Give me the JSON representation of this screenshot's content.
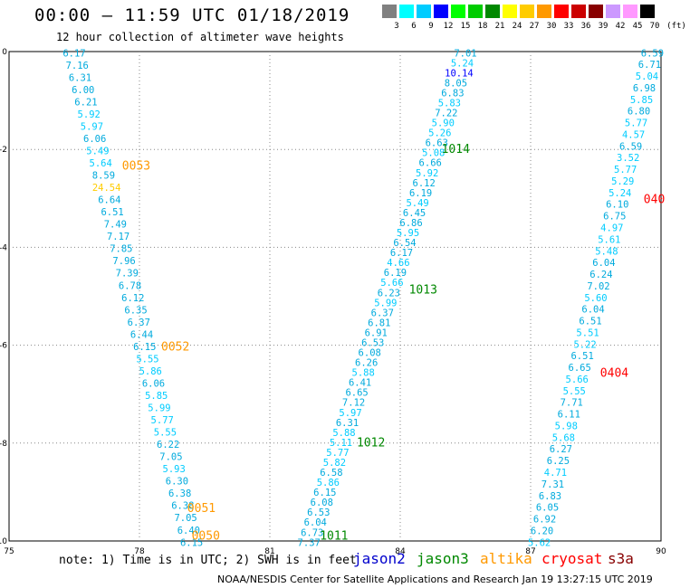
{
  "header": {
    "title": "00:00 — 11:59 UTC 01/18/2019",
    "subtitle": "12 hour collection of altimeter wave heights"
  },
  "legend": {
    "unit": "(ft)",
    "colors": [
      "#808080",
      "#00ffff",
      "#00ccff",
      "#0000ff",
      "#00ff00",
      "#00cc00",
      "#008800",
      "#ffff00",
      "#ffcc00",
      "#ff9900",
      "#ff0000",
      "#cc0000",
      "#880000",
      "#cc99ff",
      "#ff99ff",
      "#000000"
    ],
    "labels": [
      "3",
      "6",
      "9",
      "12",
      "15",
      "18",
      "21",
      "24",
      "27",
      "30",
      "33",
      "36",
      "39",
      "42",
      "45",
      "70"
    ]
  },
  "axes": {
    "x_labels": [
      "75",
      "78",
      "81",
      "84",
      "87",
      "90"
    ],
    "y_labels": [
      "0",
      "-2",
      "-4",
      "-6",
      "-8",
      "-10"
    ],
    "x_range": [
      75,
      90
    ],
    "y_range": [
      -10,
      0
    ]
  },
  "tracks": [
    {
      "id": "t0050",
      "lon0": 76.5,
      "lon1": 79.2,
      "lat0": 0.05,
      "lat1": -9.95,
      "values": [
        "6.17",
        "7.16",
        "6.31",
        "6.00",
        "6.21",
        "5.92",
        "5.97",
        "6.06",
        "5.49",
        "5.64",
        "8.59",
        "24.54",
        "6.64",
        "6.51",
        "7.49",
        "7.17",
        "7.85",
        "7.96",
        "7.39",
        "6.78",
        "6.12",
        "6.35",
        "6.37",
        "6.44",
        "6.15",
        "5.55",
        "5.86",
        "6.06",
        "5.85",
        "5.99",
        "5.77",
        "5.55",
        "6.22",
        "7.05",
        "5.93",
        "6.30",
        "6.38",
        "6.38",
        "7.05",
        "6.40",
        "6.15"
      ]
    },
    {
      "id": "t1011",
      "lon0": 85.5,
      "lon1": 81.9,
      "lat0": 0.05,
      "lat1": -9.95,
      "values": [
        "7.01",
        "5.24",
        "10.14",
        "8.05",
        "6.83",
        "5.83",
        "7.22",
        "5.90",
        "5.26",
        "6.63",
        "5.08",
        "6.66",
        "5.92",
        "6.12",
        "6.19",
        "5.49",
        "6.45",
        "6.86",
        "5.95",
        "6.54",
        "6.17",
        "4.66",
        "6.19",
        "5.66",
        "6.23",
        "5.99",
        "6.37",
        "6.81",
        "6.91",
        "6.53",
        "6.08",
        "6.26",
        "5.88",
        "6.41",
        "6.65",
        "7.12",
        "5.97",
        "6.31",
        "5.88",
        "5.11",
        "5.77",
        "5.82",
        "6.58",
        "5.86",
        "6.15",
        "6.08",
        "6.53",
        "6.04",
        "6.73",
        "7.37"
      ]
    },
    {
      "id": "t0404",
      "lon0": 89.8,
      "lon1": 87.2,
      "lat0": 0.05,
      "lat1": -9.95,
      "values": [
        "6.59",
        "6.71",
        "5.04",
        "6.98",
        "5.85",
        "6.80",
        "5.77",
        "4.57",
        "6.59",
        "3.52",
        "5.77",
        "5.29",
        "5.24",
        "6.10",
        "6.75",
        "4.97",
        "5.61",
        "5.48",
        "6.04",
        "6.24",
        "7.02",
        "5.60",
        "6.04",
        "6.51",
        "5.51",
        "5.22",
        "6.51",
        "6.65",
        "5.66",
        "5.55",
        "7.71",
        "6.11",
        "5.98",
        "5.68",
        "6.27",
        "6.25",
        "4.71",
        "7.31",
        "6.83",
        "6.05",
        "6.92",
        "6.20",
        "5.62"
      ]
    }
  ],
  "passes": [
    {
      "label": "0053",
      "lon": 77.6,
      "lat": -2.32,
      "sat": "altika"
    },
    {
      "label": "0052",
      "lon": 78.5,
      "lat": -6.02,
      "sat": "altika"
    },
    {
      "label": "0051",
      "lon": 79.1,
      "lat": -9.32,
      "sat": "altika"
    },
    {
      "label": "0050",
      "lon": 79.2,
      "lat": -9.88,
      "sat": "altika"
    },
    {
      "label": "1014",
      "lon": 84.95,
      "lat": -1.98,
      "sat": "jason3"
    },
    {
      "label": "1013",
      "lon": 84.2,
      "lat": -4.85,
      "sat": "jason3"
    },
    {
      "label": "1012",
      "lon": 83.0,
      "lat": -7.98,
      "sat": "jason3"
    },
    {
      "label": "1011",
      "lon": 82.15,
      "lat": -9.88,
      "sat": "jason3"
    },
    {
      "label": "040",
      "lon": 89.6,
      "lat": -3.0,
      "sat": "cryosat"
    },
    {
      "label": "0404",
      "lon": 88.6,
      "lat": -6.55,
      "sat": "cryosat"
    }
  ],
  "satellites": [
    {
      "name": "jason2",
      "color": "#0000cc"
    },
    {
      "name": "jason3",
      "color": "#008800"
    },
    {
      "name": "altika",
      "color": "#ff9900"
    },
    {
      "name": "cryosat",
      "color": "#ff0000"
    },
    {
      "name": "s3a",
      "color": "#880000"
    }
  ],
  "footer": {
    "note": "note: 1) Time is in UTC; 2) SWH is in feet",
    "credit": "NOAA/NESDIS Center for Satellite Applications and Research   Jan 19 13:27:15 UTC 2019"
  }
}
